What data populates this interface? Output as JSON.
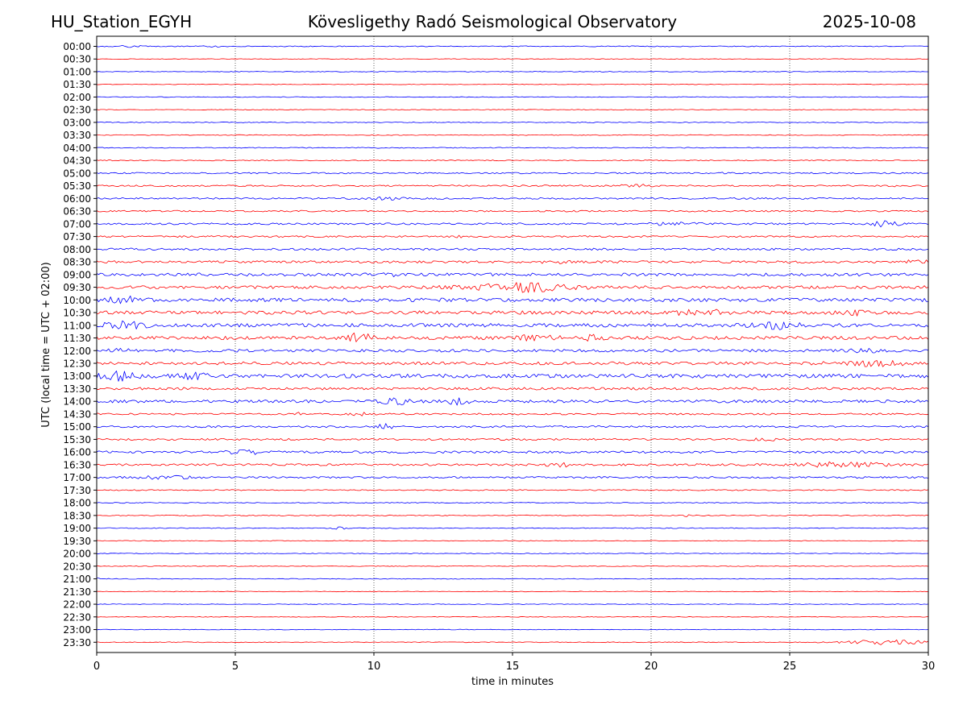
{
  "header": {
    "station": "HU_Station_EGYH",
    "observatory": "Kövesligethy Radó Seismological Observatory",
    "date": "2025-10-08"
  },
  "chart_data": {
    "type": "line",
    "title": "Kövesligethy Radó Seismological Observatory",
    "xlabel": "time in minutes",
    "ylabel": "UTC (local time = UTC + 02:00)",
    "xlim": [
      0,
      30
    ],
    "x_ticks": [
      0,
      5,
      10,
      15,
      20,
      25,
      30
    ],
    "grid": "vertical dotted lines at each x tick",
    "series_colors": [
      "#0000ff",
      "#ff0000"
    ],
    "rows": [
      {
        "label": "00:00",
        "level": 0.18,
        "events": [
          {
            "t": 1.0,
            "a": 0.35,
            "w": 0.6
          },
          {
            "t": 4.2,
            "a": 0.2,
            "w": 0.4
          }
        ]
      },
      {
        "label": "00:30",
        "level": 0.12,
        "events": []
      },
      {
        "label": "01:00",
        "level": 0.14,
        "events": []
      },
      {
        "label": "01:30",
        "level": 0.12,
        "events": []
      },
      {
        "label": "02:00",
        "level": 0.14,
        "events": []
      },
      {
        "label": "02:30",
        "level": 0.14,
        "events": []
      },
      {
        "label": "03:00",
        "level": 0.16,
        "events": []
      },
      {
        "label": "03:30",
        "level": 0.16,
        "events": []
      },
      {
        "label": "04:00",
        "level": 0.18,
        "events": [
          {
            "t": 10.0,
            "a": 0.2,
            "w": 0.3
          }
        ]
      },
      {
        "label": "04:30",
        "level": 0.2,
        "events": []
      },
      {
        "label": "05:00",
        "level": 0.28,
        "events": [
          {
            "t": 22.5,
            "a": 0.5,
            "w": 0.15
          }
        ]
      },
      {
        "label": "05:30",
        "level": 0.3,
        "events": [
          {
            "t": 19.4,
            "a": 0.55,
            "w": 0.5
          },
          {
            "t": 28.6,
            "a": 0.4,
            "w": 0.2
          }
        ]
      },
      {
        "label": "06:00",
        "level": 0.32,
        "events": [
          {
            "t": 10.5,
            "a": 0.4,
            "w": 0.6
          }
        ]
      },
      {
        "label": "06:30",
        "level": 0.3,
        "events": []
      },
      {
        "label": "07:00",
        "level": 0.35,
        "events": [
          {
            "t": 20.8,
            "a": 0.5,
            "w": 0.8
          },
          {
            "t": 28.5,
            "a": 1.1,
            "w": 0.5
          }
        ]
      },
      {
        "label": "07:30",
        "level": 0.32,
        "events": [
          {
            "t": 13.0,
            "a": 0.4,
            "w": 0.2
          }
        ]
      },
      {
        "label": "08:00",
        "level": 0.4,
        "events": []
      },
      {
        "label": "08:30",
        "level": 0.45,
        "events": [
          {
            "t": 16.5,
            "a": 0.5,
            "w": 0.5
          },
          {
            "t": 29.6,
            "a": 0.6,
            "w": 0.4
          }
        ]
      },
      {
        "label": "09:00",
        "level": 0.6,
        "events": [
          {
            "t": 10.5,
            "a": 0.5,
            "w": 0.4
          }
        ]
      },
      {
        "label": "09:30",
        "level": 0.6,
        "events": [
          {
            "t": 15.4,
            "a": 1.5,
            "w": 1.8
          }
        ]
      },
      {
        "label": "10:00",
        "level": 0.7,
        "events": [
          {
            "t": 1.0,
            "a": 1.0,
            "w": 0.6
          }
        ]
      },
      {
        "label": "10:30",
        "level": 0.7,
        "events": [
          {
            "t": 21.2,
            "a": 0.8,
            "w": 0.4
          },
          {
            "t": 22.4,
            "a": 0.7,
            "w": 0.3
          },
          {
            "t": 27.3,
            "a": 0.8,
            "w": 0.3
          }
        ]
      },
      {
        "label": "11:00",
        "level": 0.7,
        "events": [
          {
            "t": 1.0,
            "a": 1.2,
            "w": 0.7
          },
          {
            "t": 24.5,
            "a": 1.2,
            "w": 0.8
          }
        ]
      },
      {
        "label": "11:30",
        "level": 0.65,
        "events": [
          {
            "t": 9.5,
            "a": 1.9,
            "w": 0.4
          },
          {
            "t": 15.8,
            "a": 0.9,
            "w": 1.0
          },
          {
            "t": 18.0,
            "a": 1.0,
            "w": 0.4
          }
        ]
      },
      {
        "label": "12:00",
        "level": 0.55,
        "events": [
          {
            "t": 0.8,
            "a": 0.6,
            "w": 0.4
          },
          {
            "t": 27.8,
            "a": 0.9,
            "w": 0.5
          }
        ]
      },
      {
        "label": "12:30",
        "level": 0.6,
        "events": [
          {
            "t": 28.0,
            "a": 0.8,
            "w": 1.5
          }
        ]
      },
      {
        "label": "13:00",
        "level": 0.75,
        "events": [
          {
            "t": 0.8,
            "a": 1.3,
            "w": 0.7
          },
          {
            "t": 3.5,
            "a": 0.9,
            "w": 0.6
          }
        ]
      },
      {
        "label": "13:30",
        "level": 0.5,
        "events": []
      },
      {
        "label": "14:00",
        "level": 0.55,
        "events": [
          {
            "t": 10.8,
            "a": 1.0,
            "w": 0.6
          },
          {
            "t": 13.0,
            "a": 1.0,
            "w": 0.4
          }
        ]
      },
      {
        "label": "14:30",
        "level": 0.35,
        "events": [
          {
            "t": 7.4,
            "a": 0.5,
            "w": 0.2
          },
          {
            "t": 9.4,
            "a": 0.5,
            "w": 0.4
          }
        ]
      },
      {
        "label": "15:00",
        "level": 0.35,
        "events": [
          {
            "t": 10.4,
            "a": 0.9,
            "w": 0.4
          }
        ]
      },
      {
        "label": "15:30",
        "level": 0.35,
        "events": [
          {
            "t": 24.0,
            "a": 0.4,
            "w": 0.6
          }
        ]
      },
      {
        "label": "16:00",
        "level": 0.45,
        "events": [
          {
            "t": 5.5,
            "a": 0.6,
            "w": 0.8
          }
        ]
      },
      {
        "label": "16:30",
        "level": 0.4,
        "events": [
          {
            "t": 16.7,
            "a": 0.8,
            "w": 0.4
          },
          {
            "t": 27.0,
            "a": 1.0,
            "w": 1.6
          }
        ]
      },
      {
        "label": "17:00",
        "level": 0.35,
        "events": [
          {
            "t": 2.5,
            "a": 0.5,
            "w": 1.0
          }
        ]
      },
      {
        "label": "17:30",
        "level": 0.22,
        "events": []
      },
      {
        "label": "18:00",
        "level": 0.18,
        "events": []
      },
      {
        "label": "18:30",
        "level": 0.18,
        "events": [
          {
            "t": 21.3,
            "a": 0.4,
            "w": 0.1
          }
        ]
      },
      {
        "label": "19:00",
        "level": 0.16,
        "events": [
          {
            "t": 8.8,
            "a": 0.4,
            "w": 0.3
          }
        ]
      },
      {
        "label": "19:30",
        "level": 0.14,
        "events": []
      },
      {
        "label": "20:00",
        "level": 0.14,
        "events": []
      },
      {
        "label": "20:30",
        "level": 0.14,
        "events": []
      },
      {
        "label": "21:00",
        "level": 0.14,
        "events": [
          {
            "t": 0.1,
            "a": 0.4,
            "w": 0.2
          }
        ]
      },
      {
        "label": "21:30",
        "level": 0.12,
        "events": []
      },
      {
        "label": "22:00",
        "level": 0.12,
        "events": []
      },
      {
        "label": "22:30",
        "level": 0.12,
        "events": []
      },
      {
        "label": "23:00",
        "level": 0.12,
        "events": []
      },
      {
        "label": "23:30",
        "level": 0.15,
        "events": [
          {
            "t": 28.5,
            "a": 0.9,
            "w": 1.6
          }
        ]
      }
    ]
  }
}
